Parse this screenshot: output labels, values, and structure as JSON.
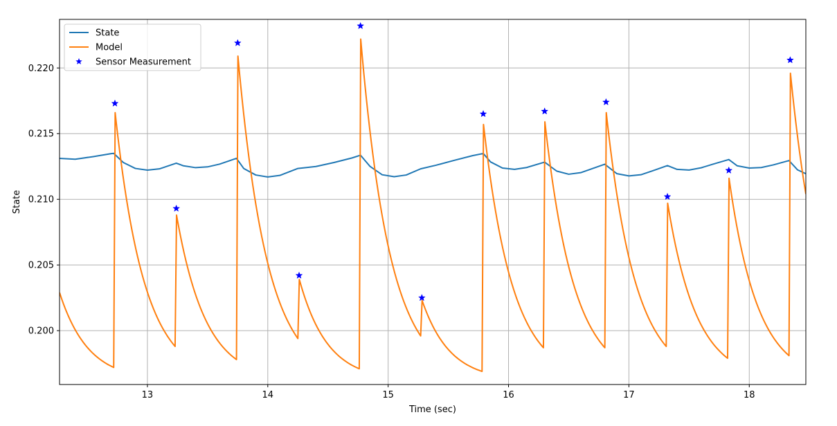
{
  "chart_data": {
    "type": "line",
    "title": "",
    "xlabel": "Time (sec)",
    "ylabel": "State",
    "xlim": [
      12.27,
      18.47
    ],
    "ylim": [
      0.1959,
      0.2237
    ],
    "xticks": [
      13,
      14,
      15,
      16,
      17,
      18
    ],
    "xtick_labels": [
      "13",
      "14",
      "15",
      "16",
      "17",
      "18"
    ],
    "yticks": [
      0.2,
      0.205,
      0.21,
      0.215,
      0.22
    ],
    "ytick_labels": [
      "0.200",
      "0.205",
      "0.210",
      "0.215",
      "0.220"
    ],
    "grid": true,
    "legend_position": "top-left",
    "colors": {
      "state": "#1f77b4",
      "model": "#ff7f0e",
      "sensor": "#0000ff"
    },
    "series": [
      {
        "name": "State",
        "style": "line",
        "points": [
          [
            12.27,
            0.21312
          ],
          [
            12.4,
            0.21305
          ],
          [
            12.55,
            0.21325
          ],
          [
            12.7,
            0.21348
          ],
          [
            12.72,
            0.2135
          ],
          [
            12.8,
            0.2128
          ],
          [
            12.9,
            0.21235
          ],
          [
            13.0,
            0.21222
          ],
          [
            13.1,
            0.21232
          ],
          [
            13.24,
            0.21275
          ],
          [
            13.3,
            0.21255
          ],
          [
            13.4,
            0.21241
          ],
          [
            13.5,
            0.21247
          ],
          [
            13.6,
            0.21268
          ],
          [
            13.74,
            0.21312
          ],
          [
            13.8,
            0.21235
          ],
          [
            13.9,
            0.21185
          ],
          [
            14.0,
            0.2117
          ],
          [
            14.1,
            0.21182
          ],
          [
            14.25,
            0.21235
          ],
          [
            14.4,
            0.2125
          ],
          [
            14.55,
            0.2128
          ],
          [
            14.7,
            0.21315
          ],
          [
            14.77,
            0.21336
          ],
          [
            14.85,
            0.2125
          ],
          [
            14.95,
            0.21187
          ],
          [
            15.05,
            0.21172
          ],
          [
            15.15,
            0.21185
          ],
          [
            15.27,
            0.21232
          ],
          [
            15.4,
            0.2126
          ],
          [
            15.55,
            0.21297
          ],
          [
            15.7,
            0.21332
          ],
          [
            15.79,
            0.21349
          ],
          [
            15.85,
            0.21285
          ],
          [
            15.95,
            0.21238
          ],
          [
            16.05,
            0.21228
          ],
          [
            16.15,
            0.21242
          ],
          [
            16.3,
            0.21283
          ],
          [
            16.4,
            0.21215
          ],
          [
            16.5,
            0.21191
          ],
          [
            16.6,
            0.21203
          ],
          [
            16.8,
            0.21267
          ],
          [
            16.9,
            0.21195
          ],
          [
            17.0,
            0.21178
          ],
          [
            17.1,
            0.21187
          ],
          [
            17.2,
            0.21218
          ],
          [
            17.32,
            0.21257
          ],
          [
            17.4,
            0.21228
          ],
          [
            17.5,
            0.21223
          ],
          [
            17.6,
            0.2124
          ],
          [
            17.7,
            0.21268
          ],
          [
            17.83,
            0.21303
          ],
          [
            17.9,
            0.21255
          ],
          [
            18.0,
            0.21238
          ],
          [
            18.1,
            0.21242
          ],
          [
            18.2,
            0.21262
          ],
          [
            18.33,
            0.21295
          ],
          [
            18.4,
            0.21225
          ],
          [
            18.47,
            0.21195
          ]
        ]
      },
      {
        "name": "Model",
        "style": "line",
        "segments": [
          {
            "start": [
              12.27,
              0.2029
            ],
            "spike": [
              12.72,
              0.1972
            ],
            "peak": 0.2166
          },
          {
            "spike": [
              13.23,
              0.1988
            ],
            "peak": 0.2088
          },
          {
            "spike": [
              13.74,
              0.1978
            ],
            "peak": 0.2209
          },
          {
            "spike": [
              14.25,
              0.1994
            ],
            "peak": 0.2039
          },
          {
            "spike": [
              14.76,
              0.1971
            ],
            "peak": 0.2222
          },
          {
            "spike": [
              15.27,
              0.1996
            ],
            "peak": 0.2023
          },
          {
            "spike": [
              15.78,
              0.1969
            ],
            "peak": 0.2157
          },
          {
            "spike": [
              16.29,
              0.1987
            ],
            "peak": 0.2159
          },
          {
            "spike": [
              16.8,
              0.1987
            ],
            "peak": 0.2166
          },
          {
            "spike": [
              17.31,
              0.1988
            ],
            "peak": 0.2097
          },
          {
            "spike": [
              17.82,
              0.1979
            ],
            "peak": 0.2116
          },
          {
            "spike": [
              18.33,
              0.1981
            ],
            "peak": 0.2196
          },
          {
            "end": [
              18.47,
              0.2104
            ]
          }
        ]
      },
      {
        "name": "Sensor Measurement",
        "style": "marker",
        "points": [
          [
            12.73,
            0.2173
          ],
          [
            13.24,
            0.2093
          ],
          [
            13.75,
            0.2219
          ],
          [
            14.26,
            0.2042
          ],
          [
            14.77,
            0.2232
          ],
          [
            15.28,
            0.2025
          ],
          [
            15.79,
            0.2165
          ],
          [
            16.3,
            0.2167
          ],
          [
            16.81,
            0.2174
          ],
          [
            17.32,
            0.2102
          ],
          [
            17.83,
            0.2122
          ],
          [
            18.34,
            0.2206
          ]
        ]
      }
    ]
  }
}
